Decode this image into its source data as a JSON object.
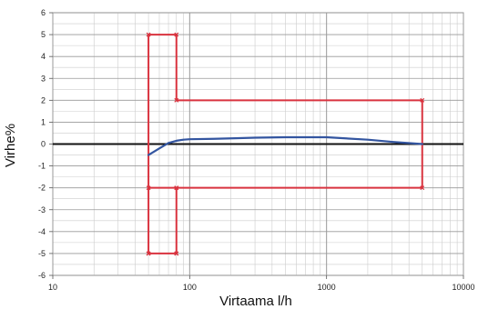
{
  "chart_data": {
    "type": "line",
    "xlabel": "Virtaama l/h",
    "ylabel": "Virhe%",
    "x_scale": "log",
    "xlim": [
      10,
      10000
    ],
    "ylim": [
      -6,
      6
    ],
    "x_ticks": [
      10,
      100,
      1000,
      10000
    ],
    "x_tick_labels": [
      "10",
      "100",
      "1000",
      "10000"
    ],
    "y_ticks": [
      -6,
      -5,
      -4,
      -3,
      -2,
      -1,
      0,
      1,
      2,
      3,
      4,
      5,
      6
    ],
    "y_tick_labels": [
      "-6",
      "-5",
      "-4",
      "-3",
      "-2",
      "-1",
      "0",
      "1",
      "2",
      "3",
      "4",
      "5",
      "6"
    ],
    "grid": true,
    "legend": "none",
    "series": [
      {
        "color": "#d9333f",
        "marker": "x",
        "x": [
          80,
          50,
          50,
          80,
          80,
          5000,
          5000,
          80,
          80,
          50,
          50,
          80
        ],
        "y": [
          -2,
          -2,
          -5,
          -5,
          -2,
          -2,
          2,
          2,
          5,
          5,
          -5,
          -5
        ]
      },
      {
        "color": "#3355a0",
        "marker": "none",
        "x": [
          50,
          60,
          70,
          80,
          90,
          100,
          150,
          200,
          300,
          500,
          1000,
          2000,
          3000,
          5000
        ],
        "y": [
          -0.5,
          -0.2,
          0.05,
          0.15,
          0.2,
          0.22,
          0.24,
          0.26,
          0.29,
          0.31,
          0.31,
          0.2,
          0.1,
          0.0
        ]
      }
    ]
  },
  "colors": {
    "grid": "#cccccc",
    "major_grid": "#999999",
    "zero_line": "#111111",
    "axis": "#555555"
  }
}
